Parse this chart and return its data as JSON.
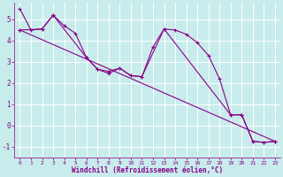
{
  "xlabel": "Windchill (Refroidissement éolien,°C)",
  "background_color": "#c8ecec",
  "line_color": "#880088",
  "grid_color": "#aad4d4",
  "xlim": [
    -0.5,
    23.5
  ],
  "ylim": [
    -1.5,
    5.8
  ],
  "xticks": [
    0,
    1,
    2,
    3,
    4,
    5,
    6,
    7,
    8,
    9,
    10,
    11,
    12,
    13,
    14,
    15,
    16,
    17,
    18,
    19,
    20,
    21,
    22,
    23
  ],
  "yticks": [
    -1,
    0,
    1,
    2,
    3,
    4,
    5
  ],
  "line1_x": [
    0,
    1,
    2,
    3,
    4,
    5,
    6,
    7,
    8,
    9,
    10,
    11,
    12,
    13,
    14,
    15,
    16,
    17,
    18,
    19,
    20,
    21,
    22,
    23
  ],
  "line1_y": [
    5.5,
    4.5,
    4.55,
    5.2,
    4.7,
    4.35,
    3.2,
    2.65,
    2.55,
    2.7,
    2.35,
    2.3,
    3.7,
    4.55,
    4.5,
    4.3,
    3.9,
    3.3,
    2.2,
    0.5,
    0.5,
    -0.75,
    -0.8,
    -0.75
  ],
  "line2_x": [
    0,
    2,
    3,
    6,
    7,
    8,
    9,
    10,
    11,
    13,
    19,
    20,
    21,
    22,
    23
  ],
  "line2_y": [
    4.5,
    4.55,
    5.2,
    3.2,
    2.65,
    2.45,
    2.7,
    2.35,
    2.3,
    4.55,
    0.5,
    0.5,
    -0.75,
    -0.8,
    -0.75
  ],
  "line3_x": [
    0,
    23
  ],
  "line3_y": [
    4.5,
    -0.75
  ]
}
